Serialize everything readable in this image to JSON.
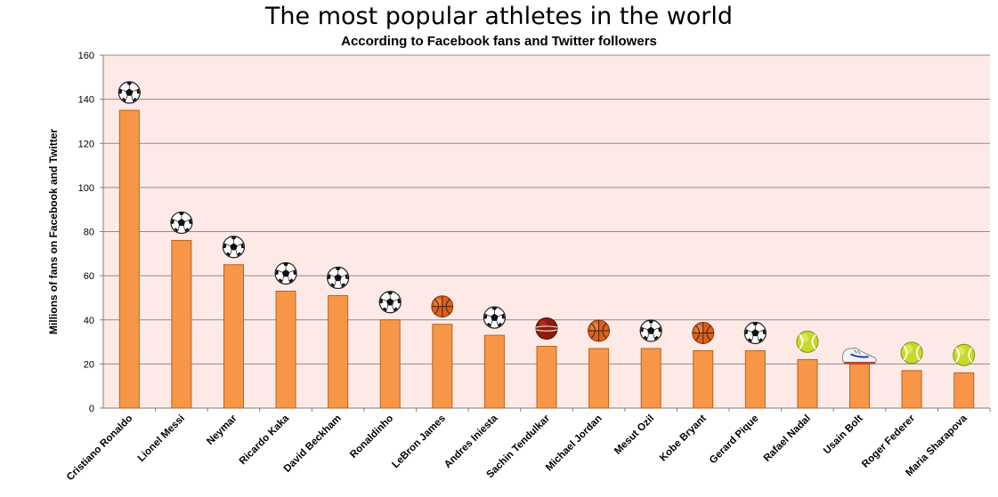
{
  "chart_data": {
    "type": "bar",
    "title": "The most popular athletes in the world",
    "subtitle": "According to Facebook fans and Twitter followers",
    "xlabel": "",
    "ylabel": "Millions of fans on Facebook and Twitter",
    "ylim": [
      0,
      160
    ],
    "yticks": [
      0,
      20,
      40,
      60,
      80,
      100,
      120,
      140,
      160
    ],
    "grid": true,
    "legend": "none",
    "colors": {
      "bar_fill": "#f79646",
      "bar_stroke": "#b8621f",
      "plot_background": "#fdeae6",
      "gridline": "#8c8c8c"
    },
    "categories": [
      "Cristiano Ronaldo",
      "Lionel Messi",
      "Neymar",
      "Ricardo Kaka",
      "David Beckham",
      "Ronaldinho",
      "LeBron James",
      "Andres Iniesta",
      "Sachin Tendulkar",
      "Michael Jordan",
      "Mesut Ozil",
      "Kobe Bryant",
      "Gerard Pique",
      "Rafael Nadal",
      "Usain Bolt",
      "Roger Federer",
      "Maria Sharapova"
    ],
    "values": [
      135,
      76,
      65,
      53,
      51,
      40,
      38,
      33,
      28,
      27,
      27,
      26,
      26,
      22,
      20,
      17,
      16
    ],
    "sport_icons": [
      "soccer-ball-icon",
      "soccer-ball-icon",
      "soccer-ball-icon",
      "soccer-ball-icon",
      "soccer-ball-icon",
      "soccer-ball-icon",
      "basketball-icon",
      "soccer-ball-icon",
      "cricket-ball-icon",
      "basketball-icon",
      "soccer-ball-icon",
      "basketball-icon",
      "soccer-ball-icon",
      "tennis-ball-icon",
      "running-shoe-icon",
      "tennis-ball-icon",
      "tennis-ball-icon"
    ]
  }
}
